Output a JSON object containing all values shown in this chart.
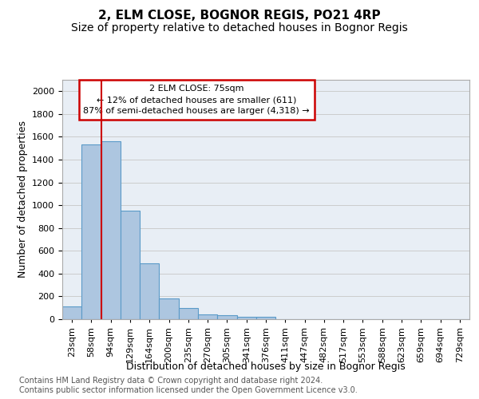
{
  "title": "2, ELM CLOSE, BOGNOR REGIS, PO21 4RP",
  "subtitle": "Size of property relative to detached houses in Bognor Regis",
  "xlabel": "Distribution of detached houses by size in Bognor Regis",
  "ylabel": "Number of detached properties",
  "bar_values": [
    110,
    1535,
    1560,
    950,
    490,
    185,
    95,
    45,
    35,
    22,
    18,
    0,
    0,
    0,
    0,
    0,
    0,
    0,
    0,
    0,
    0
  ],
  "bar_labels": [
    "23sqm",
    "58sqm",
    "94sqm",
    "129sqm",
    "164sqm",
    "200sqm",
    "235sqm",
    "270sqm",
    "305sqm",
    "341sqm",
    "376sqm",
    "411sqm",
    "447sqm",
    "482sqm",
    "517sqm",
    "553sqm",
    "588sqm",
    "623sqm",
    "659sqm",
    "694sqm",
    "729sqm"
  ],
  "bar_color": "#adc6e0",
  "bar_edge_color": "#5a9ac8",
  "bar_edge_width": 0.8,
  "grid_color": "#cccccc",
  "annotation_text": "2 ELM CLOSE: 75sqm\n← 12% of detached houses are smaller (611)\n87% of semi-detached houses are larger (4,318) →",
  "annotation_box_color": "#ffffff",
  "annotation_box_edge_color": "#cc0000",
  "redline_color": "#cc0000",
  "ylim": [
    0,
    2100
  ],
  "yticks": [
    0,
    200,
    400,
    600,
    800,
    1000,
    1200,
    1400,
    1600,
    1800,
    2000
  ],
  "axes_bg_color": "#e8eef5",
  "background_color": "#ffffff",
  "footer_text": "Contains HM Land Registry data © Crown copyright and database right 2024.\nContains public sector information licensed under the Open Government Licence v3.0.",
  "title_fontsize": 11,
  "subtitle_fontsize": 10,
  "axis_label_fontsize": 9,
  "tick_fontsize": 8,
  "annotation_fontsize": 8,
  "footer_fontsize": 7
}
